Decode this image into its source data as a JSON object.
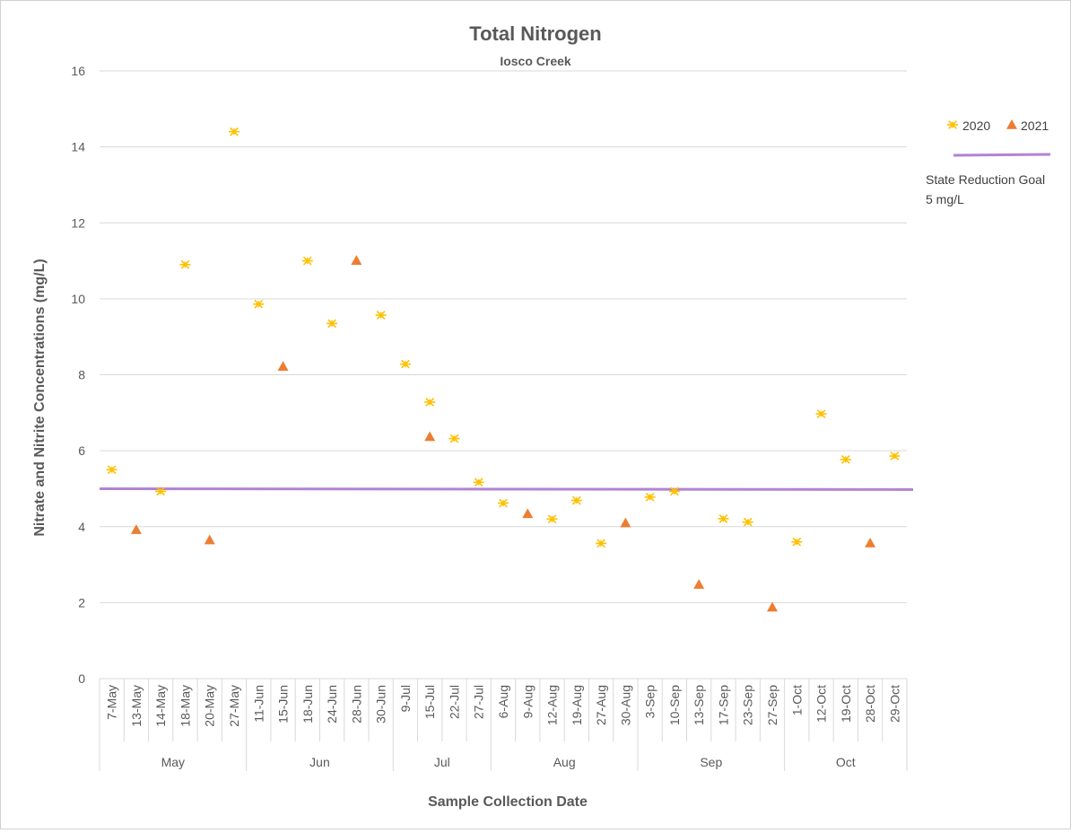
{
  "chart_data": {
    "type": "scatter",
    "title": "Total Nitrogen",
    "subtitle": "Iosco Creek",
    "xlabel": "Sample Collection Date",
    "ylabel": "Nitrate and Nitrite Concentrations (mg/L)",
    "ylim": [
      0,
      16
    ],
    "yticks": [
      "0",
      "2",
      "4",
      "6",
      "8",
      "10",
      "12",
      "14",
      "16"
    ],
    "grid": true,
    "legend_position": "right",
    "categories": [
      "7-May",
      "13-May",
      "14-May",
      "18-May",
      "20-May",
      "27-May",
      "11-Jun",
      "15-Jun",
      "18-Jun",
      "24-Jun",
      "28-Jun",
      "30-Jun",
      "9-Jul",
      "15-Jul",
      "22-Jul",
      "27-Jul",
      "6-Aug",
      "9-Aug",
      "12-Aug",
      "19-Aug",
      "27-Aug",
      "30-Aug",
      "3-Sep",
      "10-Sep",
      "13-Sep",
      "17-Sep",
      "23-Sep",
      "27-Sep",
      "1-Oct",
      "12-Oct",
      "19-Oct",
      "28-Oct",
      "29-Oct"
    ],
    "month_groups": [
      {
        "label": "May",
        "count": 6
      },
      {
        "label": "Jun",
        "count": 6
      },
      {
        "label": "Jul",
        "count": 4
      },
      {
        "label": "Aug",
        "count": 6
      },
      {
        "label": "Sep",
        "count": 6
      },
      {
        "label": "Oct",
        "count": 5
      }
    ],
    "series": [
      {
        "name": "2020",
        "marker": "asterisk",
        "color": "#ffc000",
        "values": [
          5.5,
          null,
          4.93,
          10.9,
          null,
          14.4,
          9.86,
          null,
          11.0,
          9.35,
          null,
          9.57,
          8.28,
          7.28,
          6.32,
          5.17,
          4.62,
          null,
          4.2,
          4.69,
          3.56,
          null,
          4.78,
          4.93,
          null,
          4.21,
          4.12,
          null,
          3.6,
          6.97,
          5.77,
          null,
          5.86
        ]
      },
      {
        "name": "2021",
        "marker": "triangle",
        "color": "#ed7d31",
        "values": [
          null,
          3.92,
          null,
          null,
          3.65,
          null,
          null,
          8.22,
          null,
          null,
          11.01,
          null,
          null,
          6.37,
          null,
          null,
          null,
          4.34,
          null,
          null,
          null,
          4.1,
          null,
          null,
          2.48,
          null,
          null,
          1.88,
          null,
          null,
          null,
          3.57,
          null
        ]
      }
    ],
    "reference_line": {
      "name_line1": "State Reduction Goal",
      "name_line2": "5 mg/L",
      "value": 5,
      "color": "#b283d4"
    }
  }
}
